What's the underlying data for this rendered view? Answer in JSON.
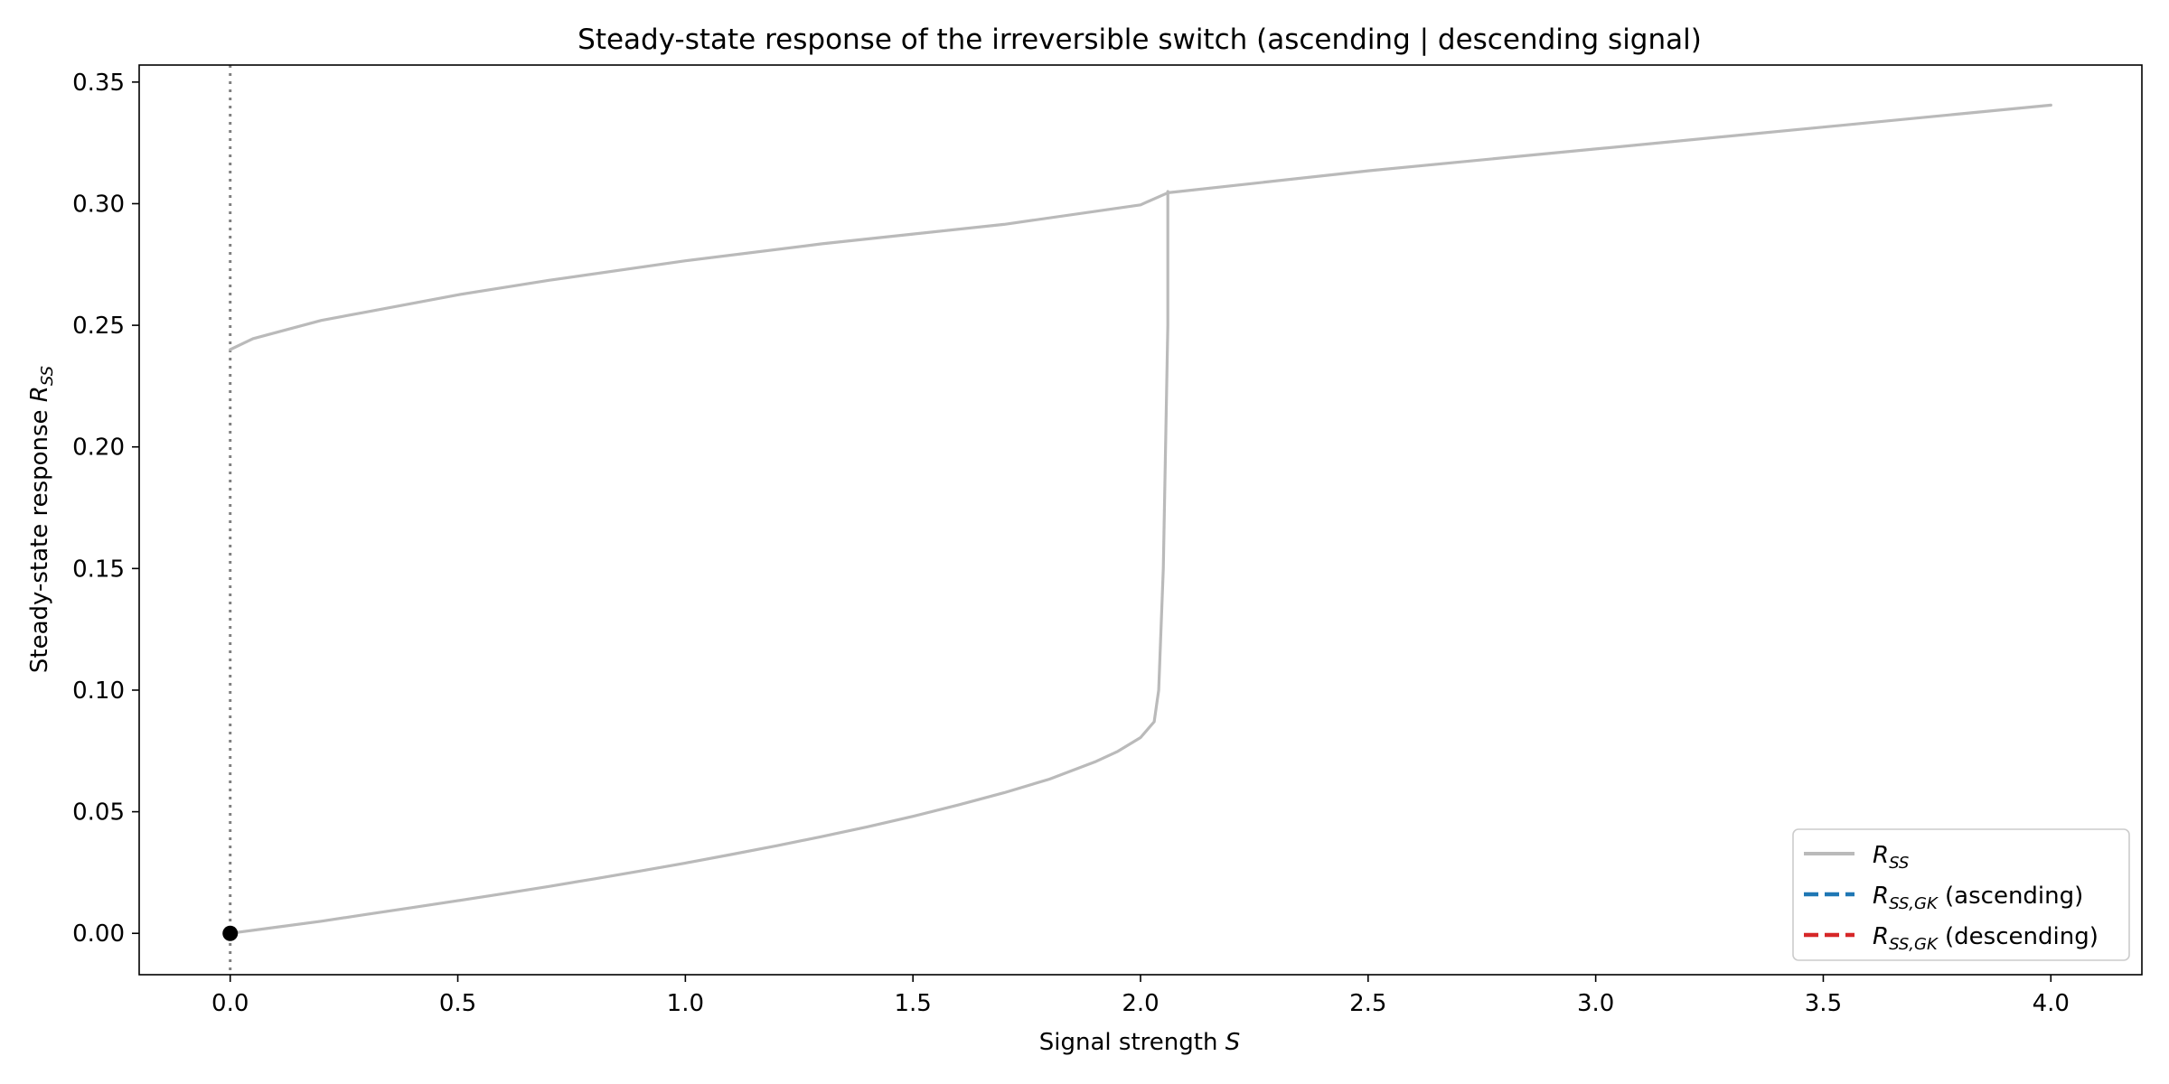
{
  "chart_data": {
    "type": "line",
    "title": "Steady-state response of the irreversible switch (ascending | descending signal)",
    "xlabel": {
      "text": "Signal strength ",
      "var": "S"
    },
    "ylabel": {
      "text": "Steady-state response ",
      "var": "R",
      "sub": "SS"
    },
    "xlim": [
      -0.2,
      4.2
    ],
    "ylim": [
      -0.017,
      0.357
    ],
    "xticks": [
      0.0,
      0.5,
      1.0,
      1.5,
      2.0,
      2.5,
      3.0,
      3.5,
      4.0
    ],
    "xtick_labels": [
      "0.0",
      "0.5",
      "1.0",
      "1.5",
      "2.0",
      "2.5",
      "3.0",
      "3.5",
      "4.0"
    ],
    "yticks": [
      0.0,
      0.05,
      0.1,
      0.15,
      0.2,
      0.25,
      0.3,
      0.35
    ],
    "ytick_labels": [
      "0.00",
      "0.05",
      "0.10",
      "0.15",
      "0.20",
      "0.25",
      "0.30",
      "0.35"
    ],
    "grid": false,
    "legend_position": "lower-right",
    "vline_x": 0.0,
    "marker_point": [
      0.0,
      0.0
    ],
    "colors": {
      "rss": "#bababa",
      "ascending": "#1f77b4",
      "descending": "#d62728",
      "vline": "#808080",
      "marker": "#000000"
    },
    "series": [
      {
        "name": {
          "var": "R",
          "sub": "SS",
          "suffix": ""
        },
        "style": "solid",
        "segments": [
          {
            "x": [
              0.0,
              0.1,
              0.2,
              0.3,
              0.4,
              0.5,
              0.6,
              0.7,
              0.8,
              0.9,
              1.0,
              1.1,
              1.2,
              1.3,
              1.4,
              1.5,
              1.6,
              1.7,
              1.8,
              1.9,
              1.95,
              2.0,
              2.03,
              2.04,
              2.05,
              2.06,
              2.06
            ],
            "y": [
              0.0,
              0.0025,
              0.005,
              0.0078,
              0.0106,
              0.0134,
              0.0163,
              0.0193,
              0.0224,
              0.0256,
              0.0289,
              0.0324,
              0.036,
              0.0398,
              0.0438,
              0.0481,
              0.0528,
              0.0578,
              0.0634,
              0.0705,
              0.0748,
              0.0805,
              0.087,
              0.1,
              0.15,
              0.25,
              0.305
            ]
          },
          {
            "x": [
              0.0,
              0.05,
              0.1,
              0.2,
              0.3,
              0.5,
              0.7,
              1.0,
              1.3,
              1.5,
              1.7,
              2.0,
              2.06,
              2.5,
              3.0,
              3.5,
              4.0
            ],
            "y": [
              0.24,
              0.2445,
              0.247,
              0.252,
              0.2555,
              0.2625,
              0.2685,
              0.2765,
              0.2835,
              0.2875,
              0.2915,
              0.2995,
              0.3045,
              0.3135,
              0.3225,
              0.3315,
              0.3405
            ]
          }
        ]
      },
      {
        "name": {
          "var": "R",
          "sub": "SS,GK",
          "suffix": " (ascending)"
        },
        "style": "dashed",
        "segments": []
      },
      {
        "name": {
          "var": "R",
          "sub": "SS,GK",
          "suffix": " (descending)"
        },
        "style": "dashed",
        "segments": []
      }
    ]
  }
}
